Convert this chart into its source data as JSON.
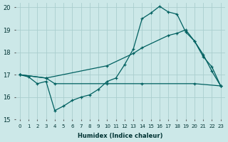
{
  "xlabel": "Humidex (Indice chaleur)",
  "xlim": [
    -0.5,
    23.5
  ],
  "ylim": [
    15,
    20.2
  ],
  "yticks": [
    15,
    16,
    17,
    18,
    19,
    20
  ],
  "xticks": [
    0,
    1,
    2,
    3,
    4,
    5,
    6,
    7,
    8,
    9,
    10,
    11,
    12,
    13,
    14,
    15,
    16,
    17,
    18,
    19,
    20,
    21,
    22,
    23
  ],
  "background_color": "#cce8e8",
  "grid_color": "#aacece",
  "line_color": "#006060",
  "line1_x": [
    0,
    1,
    2,
    3,
    4,
    5,
    6,
    7,
    8,
    9,
    10,
    11,
    12,
    13,
    14,
    15,
    16,
    17,
    18,
    19,
    20,
    21,
    22,
    23
  ],
  "line1_y": [
    17.0,
    16.9,
    16.6,
    16.7,
    15.4,
    15.6,
    15.85,
    16.0,
    16.1,
    16.35,
    16.7,
    16.85,
    17.45,
    18.15,
    19.5,
    19.75,
    20.05,
    19.8,
    19.7,
    18.9,
    18.5,
    17.8,
    17.35,
    16.5
  ],
  "line2_x": [
    0,
    3,
    10,
    13,
    14,
    17,
    18,
    19,
    20,
    21,
    22,
    23
  ],
  "line2_y": [
    17.0,
    16.85,
    17.4,
    17.95,
    18.2,
    18.75,
    18.85,
    19.0,
    18.5,
    17.9,
    17.15,
    16.5
  ],
  "line3_x": [
    0,
    3,
    4,
    10,
    14,
    20,
    23
  ],
  "line3_y": [
    17.0,
    16.85,
    16.6,
    16.6,
    16.6,
    16.6,
    16.5
  ],
  "figsize": [
    3.2,
    2.0
  ],
  "dpi": 100
}
